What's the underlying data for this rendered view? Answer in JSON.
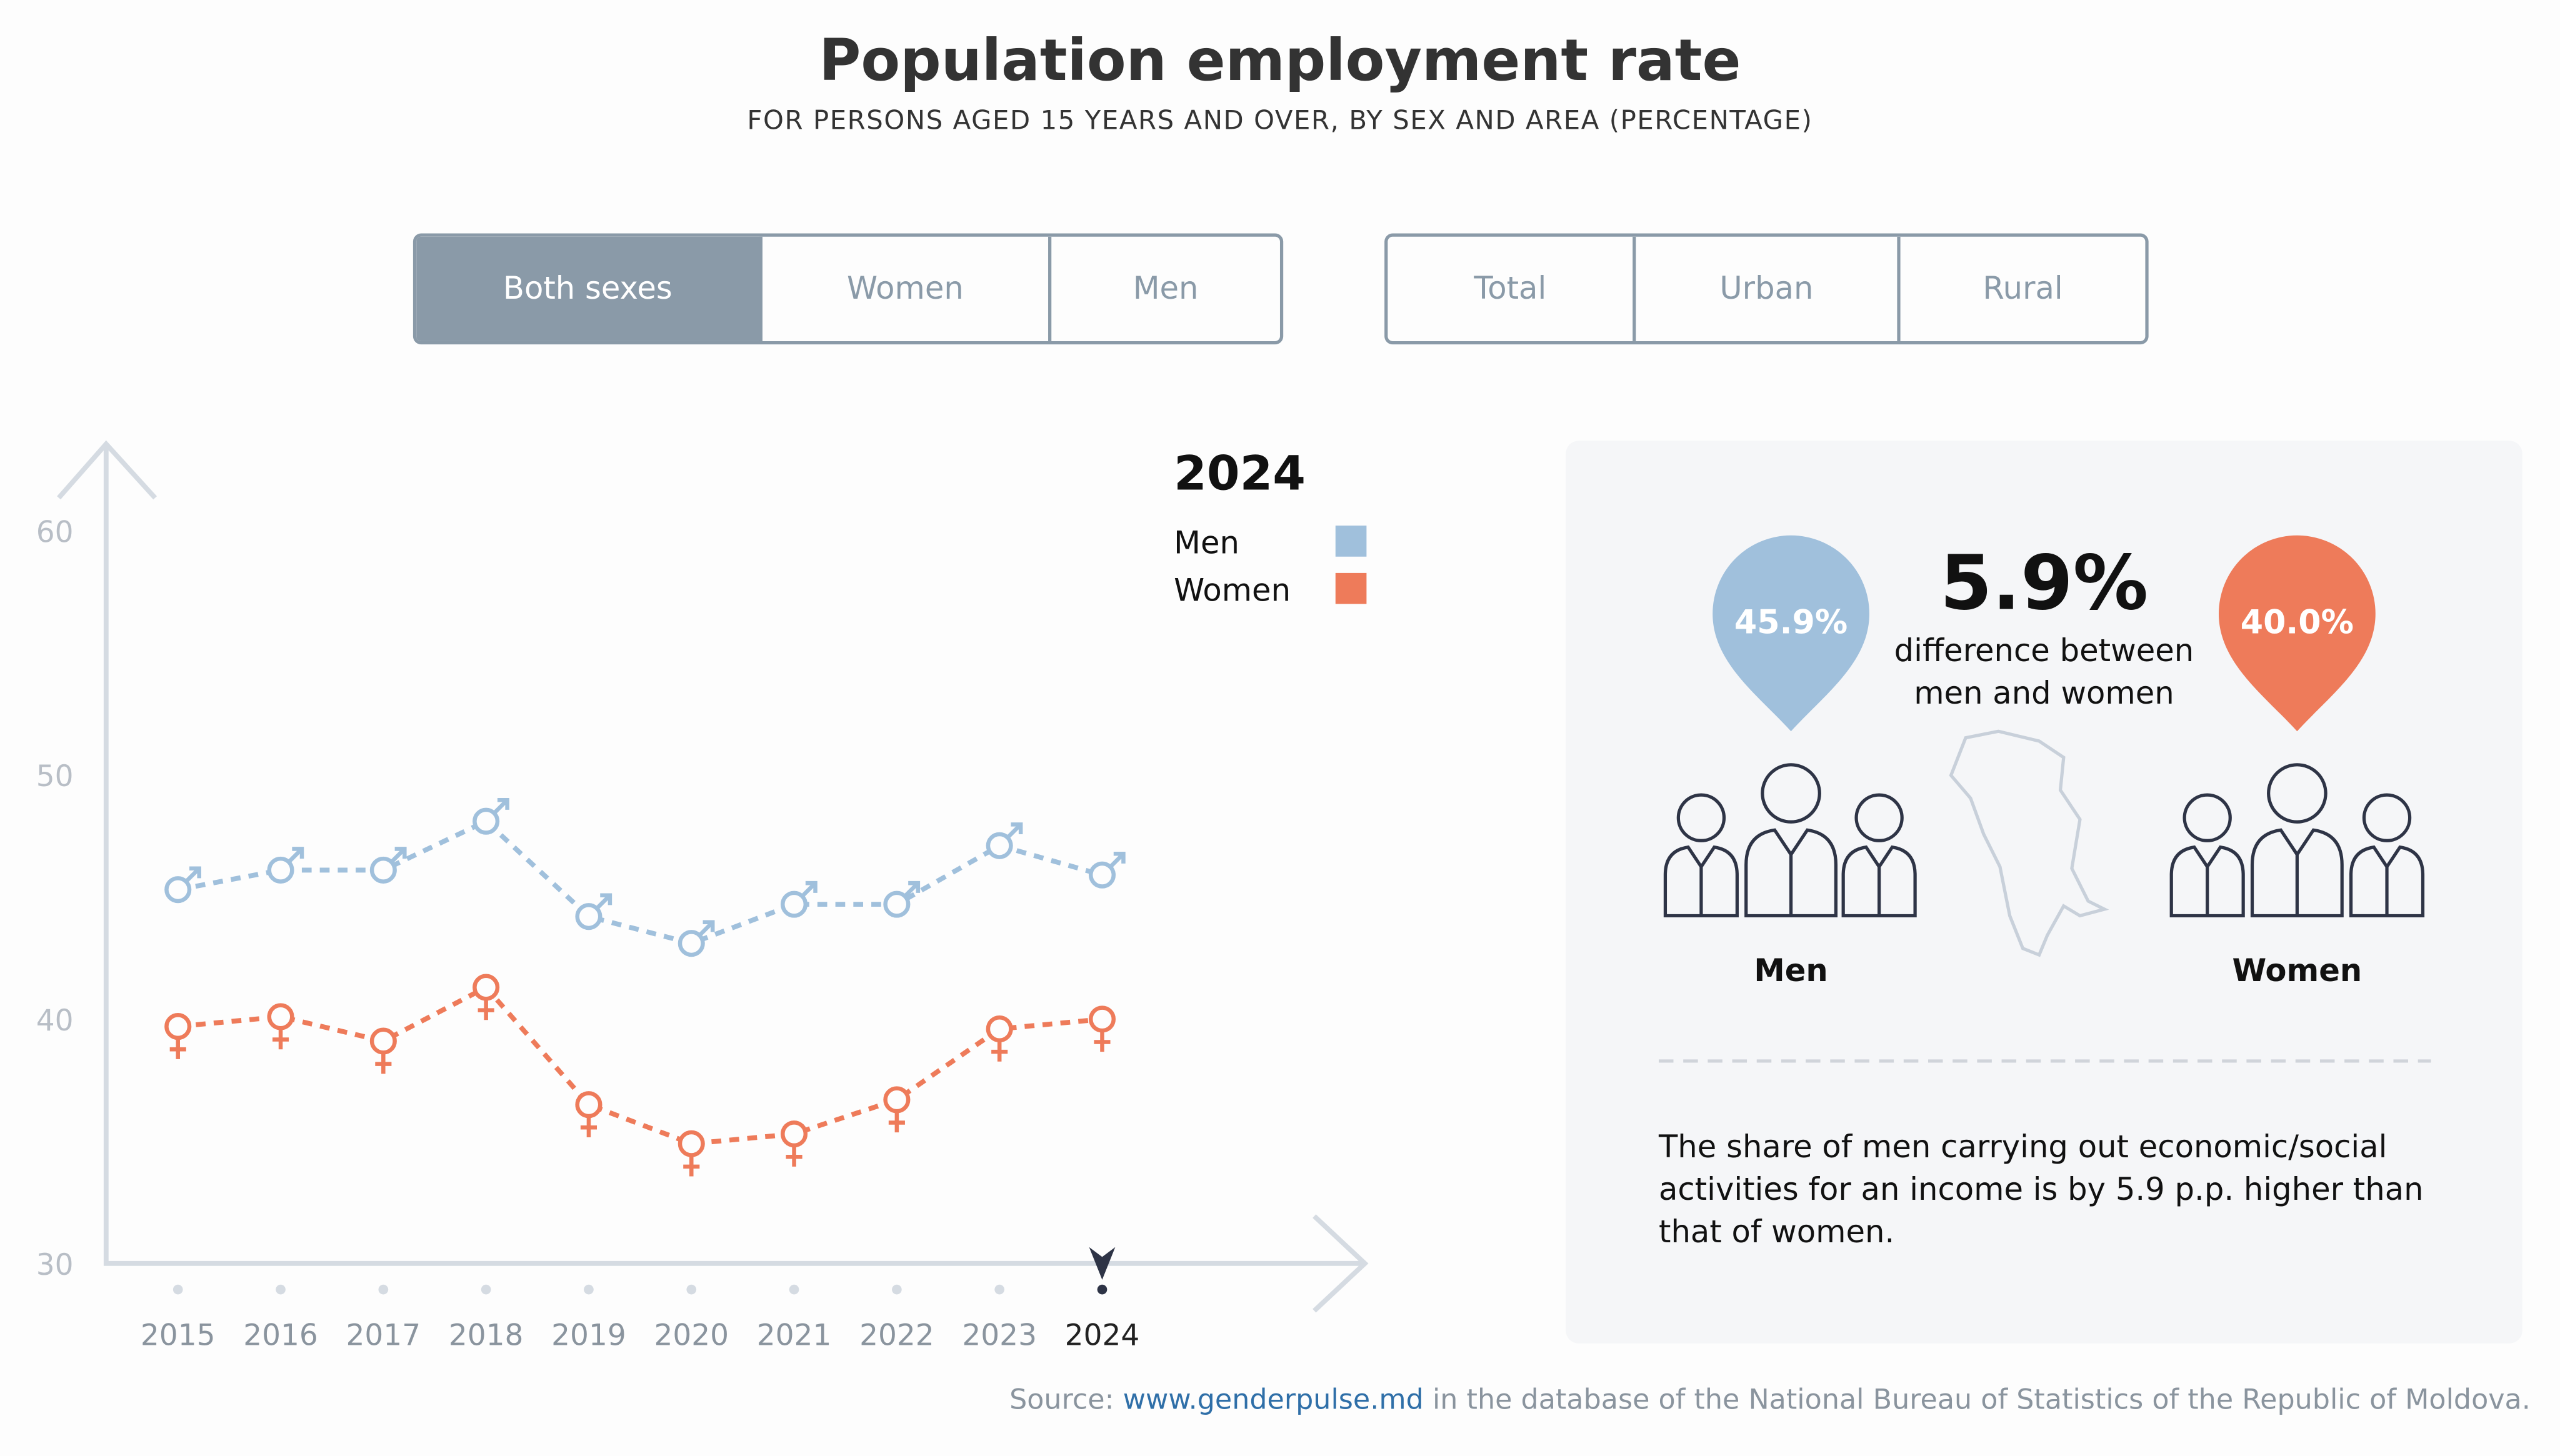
{
  "header": {
    "title": "Population employment rate",
    "subtitle": "FOR PERSONS AGED 15 YEARS AND OVER, BY SEX AND AREA (PERCENTAGE)"
  },
  "filters": {
    "sex": [
      {
        "label": "Both sexes",
        "active": true
      },
      {
        "label": "Women",
        "active": false
      },
      {
        "label": "Men",
        "active": false
      }
    ],
    "area": [
      {
        "label": "Total",
        "active": false
      },
      {
        "label": "Urban",
        "active": false
      },
      {
        "label": "Rural",
        "active": false
      }
    ]
  },
  "chart_data": {
    "type": "line",
    "x": [
      "2015",
      "2016",
      "2017",
      "2018",
      "2019",
      "2020",
      "2021",
      "2022",
      "2023",
      "2024"
    ],
    "series": [
      {
        "name": "Men",
        "color": "#a0c0dc",
        "marker": "male-symbol",
        "values": [
          45.3,
          46.1,
          46.1,
          48.1,
          44.2,
          43.1,
          44.7,
          44.7,
          47.1,
          45.9
        ]
      },
      {
        "name": "Women",
        "color": "#ee7b5a",
        "marker": "female-symbol",
        "values": [
          39.7,
          40.1,
          39.1,
          41.3,
          36.5,
          34.9,
          35.3,
          36.7,
          39.6,
          40.0
        ]
      }
    ],
    "yticks": [
      30,
      40,
      50,
      60
    ],
    "ylim": [
      30,
      60
    ],
    "selected": "2024",
    "legend": {
      "title": "2024",
      "position": "top-right"
    },
    "grid": false
  },
  "summary": {
    "men_value": "45.9%",
    "women_value": "40.0%",
    "difference": "5.9%",
    "difference_label": "difference between men and women",
    "men_label": "Men",
    "women_label": "Women",
    "men_color": "#a0c0dc",
    "women_color": "#ee7b5a",
    "note": "The share of men carrying out economic/social activities for an income is by 5.9 p.p. higher than that of women."
  },
  "source": {
    "prefix": "Source:",
    "link": "www.genderpulse.md",
    "suffix": "in the database of the National Bureau of Statistics of the Republic of Moldova."
  }
}
